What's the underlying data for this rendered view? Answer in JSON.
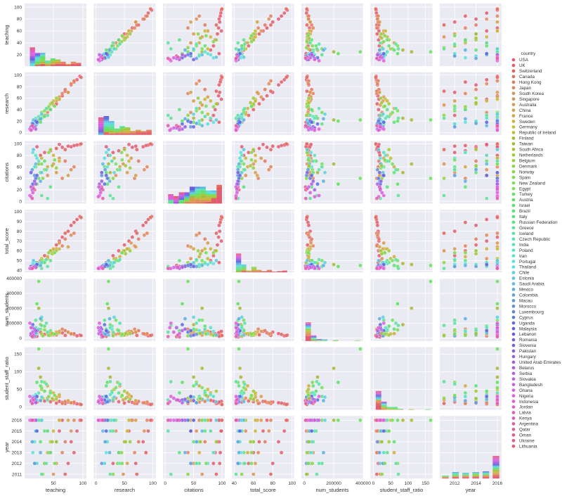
{
  "chart_data": {
    "type": "scatter",
    "kind": "pairplot",
    "hue": "country",
    "legend_title": "country",
    "legend_position": "right",
    "grid": true,
    "variables": [
      {
        "name": "teaching",
        "label": "teaching",
        "range": [
          1,
          106
        ],
        "yticks": [
          20,
          40,
          60,
          80,
          100
        ],
        "xticks": [
          50,
          100
        ],
        "xtick_labels": [
          "50",
          "100"
        ],
        "ytick_labels": [
          "20",
          "40",
          "60",
          "80",
          "100"
        ]
      },
      {
        "name": "research",
        "label": "research",
        "range": [
          -4,
          105
        ],
        "yticks": [
          0,
          20,
          40,
          60,
          80,
          100
        ],
        "xticks": [
          0,
          50,
          100
        ],
        "xtick_labels": [
          "0",
          "50",
          "100"
        ],
        "ytick_labels": [
          "0",
          "20",
          "40",
          "60",
          "80",
          "100"
        ]
      },
      {
        "name": "citations",
        "label": "citations",
        "range": [
          -4,
          105
        ],
        "yticks": [
          0,
          20,
          40,
          60,
          80,
          100
        ],
        "xticks": [
          0,
          50,
          100
        ],
        "xtick_labels": [
          "0",
          "50",
          "100"
        ],
        "ytick_labels": [
          "0",
          "20",
          "40",
          "60",
          "80",
          "100"
        ]
      },
      {
        "name": "total_score",
        "label": "total_score",
        "range": [
          38,
          102
        ],
        "yticks": [
          40,
          50,
          60,
          70,
          80,
          90,
          100
        ],
        "xticks": [
          40,
          60,
          80,
          100
        ],
        "xtick_labels": [
          "40",
          "60",
          "80",
          "100"
        ],
        "ytick_labels": [
          "40",
          "50",
          "60",
          "70",
          "80",
          "90",
          "100"
        ]
      },
      {
        "name": "num_students",
        "label": "num_students",
        "range": [
          -20000,
          400000
        ],
        "yticks": [
          0,
          100000,
          200000,
          300000,
          400000
        ],
        "xticks": [
          0,
          200000,
          400000
        ],
        "xtick_labels": [
          "0",
          "200000",
          "400000"
        ],
        "ytick_labels": [
          "0",
          "100000",
          "200000",
          "300000",
          "400000"
        ]
      },
      {
        "name": "student_staff_ratio",
        "label": "student_staff_ratio",
        "range": [
          -8,
          170
        ],
        "yticks": [
          0,
          50,
          100,
          150
        ],
        "xticks": [
          0,
          50,
          100,
          150
        ],
        "xtick_labels": [
          "0",
          "50",
          "100",
          "150"
        ],
        "ytick_labels": [
          "0",
          "50",
          "100",
          "150"
        ]
      },
      {
        "name": "year",
        "label": "year",
        "range": [
          2010.6,
          2016.4
        ],
        "yticks": [
          2011,
          2012,
          2013,
          2014,
          2015,
          2016
        ],
        "xticks": [
          2012,
          2014,
          2016
        ],
        "xtick_labels": [
          "2012",
          "2014",
          "2016"
        ],
        "ytick_labels": [
          "2011",
          "2012",
          "2013",
          "2014",
          "2015",
          "2016"
        ]
      }
    ],
    "countries": [
      "USA",
      "UK",
      "Switzerland",
      "Canada",
      "Hong Kong",
      "Japan",
      "South Korea",
      "Singapore",
      "Australia",
      "China",
      "France",
      "Sweden",
      "Germany",
      "Republic of Ireland",
      "Finland",
      "Taiwan",
      "South Africa",
      "Netherlands",
      "Belgium",
      "Denmark",
      "Norway",
      "Spain",
      "New Zealand",
      "Egypt",
      "Turkey",
      "Austria",
      "Israel",
      "Brazil",
      "Italy",
      "Russian Federation",
      "Greece",
      "Iceland",
      "Czech Republic",
      "India",
      "Poland",
      "Iran",
      "Portugal",
      "Thailand",
      "Chile",
      "Estonia",
      "Saudi Arabia",
      "Mexico",
      "Colombia",
      "Macau",
      "Morocco",
      "Luxembourg",
      "Cyprus",
      "Uganda",
      "Malaysia",
      "Lebanon",
      "Romania",
      "Slovenia",
      "Pakistan",
      "Hungary",
      "United Arab Emirates",
      "Belarus",
      "Serbia",
      "Slovakia",
      "Bangladesh",
      "Ghana",
      "Nigeria",
      "Indonesia",
      "Jordan",
      "Latvia",
      "Kenya",
      "Argentina",
      "Qatar",
      "Oman",
      "Ukraine",
      "Lithuania"
    ],
    "record_fields": [
      "teaching",
      "research",
      "citations",
      "total_score",
      "num_students",
      "student_staff_ratio",
      "year",
      "country_index"
    ],
    "records": [
      [
        95,
        98,
        99,
        95,
        20000,
        8,
        2016,
        0
      ],
      [
        90,
        92,
        98,
        92,
        15000,
        9,
        2015,
        0
      ],
      [
        85,
        88,
        97,
        89,
        25000,
        11,
        2013,
        1
      ],
      [
        80,
        83,
        95,
        86,
        30000,
        12,
        2014,
        0
      ],
      [
        75,
        70,
        96,
        80,
        40000,
        14,
        2012,
        0
      ],
      [
        70,
        72,
        90,
        78,
        18000,
        10,
        2011,
        2
      ],
      [
        65,
        64,
        94,
        74,
        35000,
        13,
        2016,
        0
      ],
      [
        60,
        58,
        99,
        70,
        45000,
        16,
        2015,
        0
      ],
      [
        55,
        50,
        92,
        66,
        22000,
        11,
        2014,
        1
      ],
      [
        45,
        40,
        88,
        60,
        30000,
        15,
        2013,
        0
      ],
      [
        35,
        30,
        85,
        55,
        25000,
        17,
        2012,
        0
      ],
      [
        28,
        22,
        80,
        50,
        40000,
        19,
        2016,
        1
      ],
      [
        22,
        18,
        95,
        48,
        12000,
        14,
        2016,
        0
      ],
      [
        18,
        12,
        20,
        45,
        10000,
        20,
        2016,
        69
      ],
      [
        15,
        10,
        25,
        44,
        8000,
        18,
        2016,
        66
      ],
      [
        97,
        96,
        100,
        94,
        17000,
        7,
        2016,
        3
      ],
      [
        85,
        90,
        60,
        78,
        30000,
        14,
        2016,
        5
      ],
      [
        80,
        85,
        55,
        76,
        28000,
        12,
        2015,
        6
      ],
      [
        70,
        75,
        70,
        72,
        50000,
        16,
        2014,
        4
      ],
      [
        65,
        68,
        40,
        65,
        60000,
        10,
        2013,
        5
      ],
      [
        60,
        62,
        75,
        68,
        45000,
        30,
        2016,
        8
      ],
      [
        55,
        55,
        50,
        62,
        40000,
        28,
        2012,
        8
      ],
      [
        50,
        48,
        65,
        60,
        20000,
        20,
        2011,
        7
      ],
      [
        40,
        35,
        45,
        52,
        25000,
        25,
        2015,
        6
      ],
      [
        75,
        70,
        45,
        64,
        40000,
        18,
        2016,
        9
      ],
      [
        60,
        58,
        70,
        62,
        35000,
        35,
        2016,
        12
      ],
      [
        50,
        55,
        80,
        62,
        25000,
        40,
        2015,
        11
      ],
      [
        45,
        50,
        90,
        60,
        20000,
        45,
        2014,
        17
      ],
      [
        40,
        42,
        60,
        54,
        30000,
        60,
        2013,
        10
      ],
      [
        35,
        38,
        55,
        50,
        55000,
        70,
        2012,
        21
      ],
      [
        30,
        32,
        75,
        52,
        28000,
        50,
        2016,
        13
      ],
      [
        28,
        25,
        50,
        47,
        90000,
        85,
        2016,
        14
      ],
      [
        25,
        22,
        65,
        46,
        200000,
        110,
        2016,
        15
      ],
      [
        32,
        30,
        40,
        48,
        15000,
        25,
        2011,
        19
      ],
      [
        55,
        60,
        58,
        60,
        30000,
        22,
        2014,
        18
      ],
      [
        42,
        45,
        85,
        58,
        18000,
        30,
        2013,
        20
      ],
      [
        30,
        35,
        65,
        50,
        120000,
        55,
        2016,
        23
      ],
      [
        25,
        22,
        40,
        45,
        380000,
        165,
        2016,
        24
      ],
      [
        22,
        20,
        30,
        44,
        230000,
        70,
        2016,
        25
      ],
      [
        35,
        28,
        70,
        48,
        80000,
        45,
        2015,
        26
      ],
      [
        28,
        18,
        50,
        45,
        60000,
        60,
        2014,
        27
      ],
      [
        45,
        40,
        25,
        50,
        50000,
        40,
        2013,
        28
      ],
      [
        20,
        15,
        60,
        44,
        120000,
        30,
        2012,
        29
      ],
      [
        30,
        25,
        10,
        42,
        85000,
        72,
        2011,
        30
      ],
      [
        40,
        30,
        5,
        44,
        40000,
        20,
        2015,
        31
      ],
      [
        38,
        42,
        55,
        51,
        100000,
        65,
        2012,
        32
      ],
      [
        25,
        28,
        70,
        47,
        60000,
        40,
        2016,
        33
      ],
      [
        20,
        25,
        80,
        48,
        70000,
        35,
        2015,
        34
      ],
      [
        18,
        20,
        60,
        46,
        50000,
        25,
        2014,
        35
      ],
      [
        15,
        18,
        85,
        47,
        45000,
        30,
        2013,
        36
      ],
      [
        22,
        15,
        75,
        46,
        30000,
        20,
        2012,
        37
      ],
      [
        30,
        32,
        50,
        48,
        140000,
        28,
        2016,
        38
      ],
      [
        16,
        22,
        90,
        50,
        20000,
        15,
        2016,
        39
      ],
      [
        20,
        12,
        65,
        45,
        35000,
        22,
        2015,
        40
      ],
      [
        28,
        24,
        35,
        45,
        130000,
        18,
        2013,
        41
      ],
      [
        14,
        16,
        55,
        44,
        25000,
        12,
        2014,
        42
      ],
      [
        18,
        10,
        45,
        44,
        15000,
        28,
        2012,
        43
      ],
      [
        20,
        20,
        40,
        45,
        40000,
        15,
        2016,
        46
      ],
      [
        15,
        15,
        30,
        44,
        90000,
        20,
        2016,
        47
      ],
      [
        22,
        18,
        45,
        46,
        50000,
        30,
        2015,
        48
      ],
      [
        12,
        10,
        50,
        44,
        20000,
        18,
        2016,
        50
      ],
      [
        18,
        10,
        35,
        44,
        60000,
        22,
        2016,
        53
      ],
      [
        14,
        8,
        20,
        43,
        70000,
        20,
        2016,
        54
      ],
      [
        20,
        6,
        30,
        43,
        50000,
        12,
        2016,
        56
      ],
      [
        12,
        5,
        25,
        42,
        30000,
        18,
        2016,
        57
      ],
      [
        15,
        8,
        15,
        43,
        40000,
        25,
        2016,
        59
      ],
      [
        10,
        6,
        10,
        42,
        100000,
        30,
        2016,
        60
      ],
      [
        12,
        4,
        8,
        42,
        70000,
        15,
        2016,
        61
      ],
      [
        16,
        10,
        22,
        43,
        20000,
        20,
        2016,
        63
      ],
      [
        14,
        12,
        5,
        42,
        10000,
        10,
        2016,
        65
      ],
      [
        48,
        52,
        62,
        57,
        32000,
        24,
        2014,
        16
      ],
      [
        52,
        46,
        72,
        58,
        27000,
        33,
        2012,
        22
      ]
    ]
  }
}
